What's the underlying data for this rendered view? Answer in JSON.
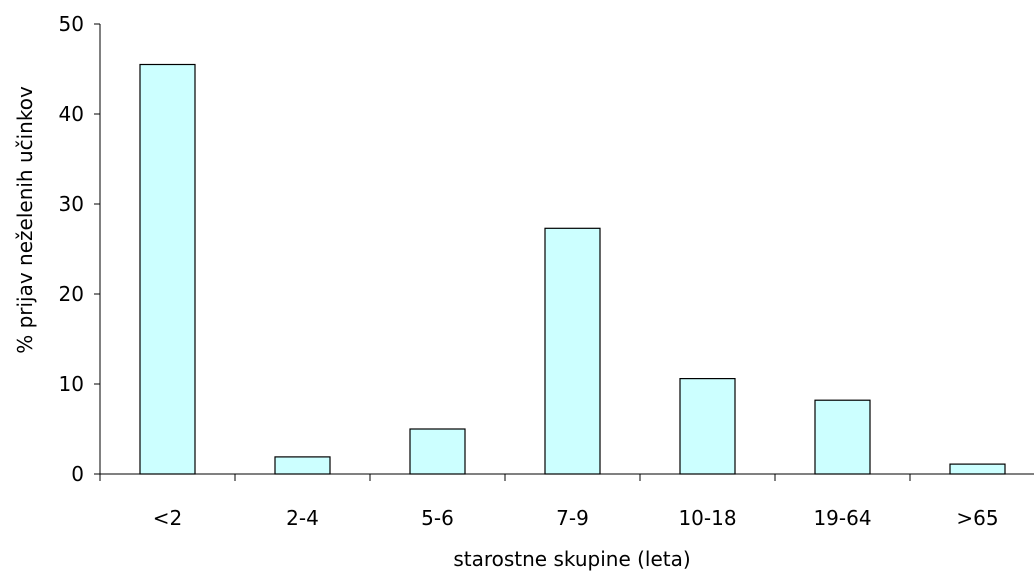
{
  "chart_data": {
    "type": "bar",
    "title": "",
    "xlabel": "starostne skupine (leta)",
    "ylabel": "% prijav neželenih učinkov",
    "categories": [
      "<2",
      "2-4",
      "5-6",
      "7-9",
      "10-18",
      "19-64",
      ">65"
    ],
    "values": [
      45.5,
      1.9,
      5.0,
      27.3,
      10.6,
      8.2,
      1.1
    ],
    "ylim": [
      0,
      50
    ],
    "yticks": [
      0,
      10,
      20,
      30,
      40,
      50
    ],
    "ytick_labels": [
      "0",
      "10",
      "20",
      "30",
      "40",
      "50"
    ],
    "grid": false,
    "legend": "none",
    "colors": {
      "bar_fill": "#ccffff",
      "bar_stroke": "#000000",
      "axis": "#000000"
    }
  }
}
